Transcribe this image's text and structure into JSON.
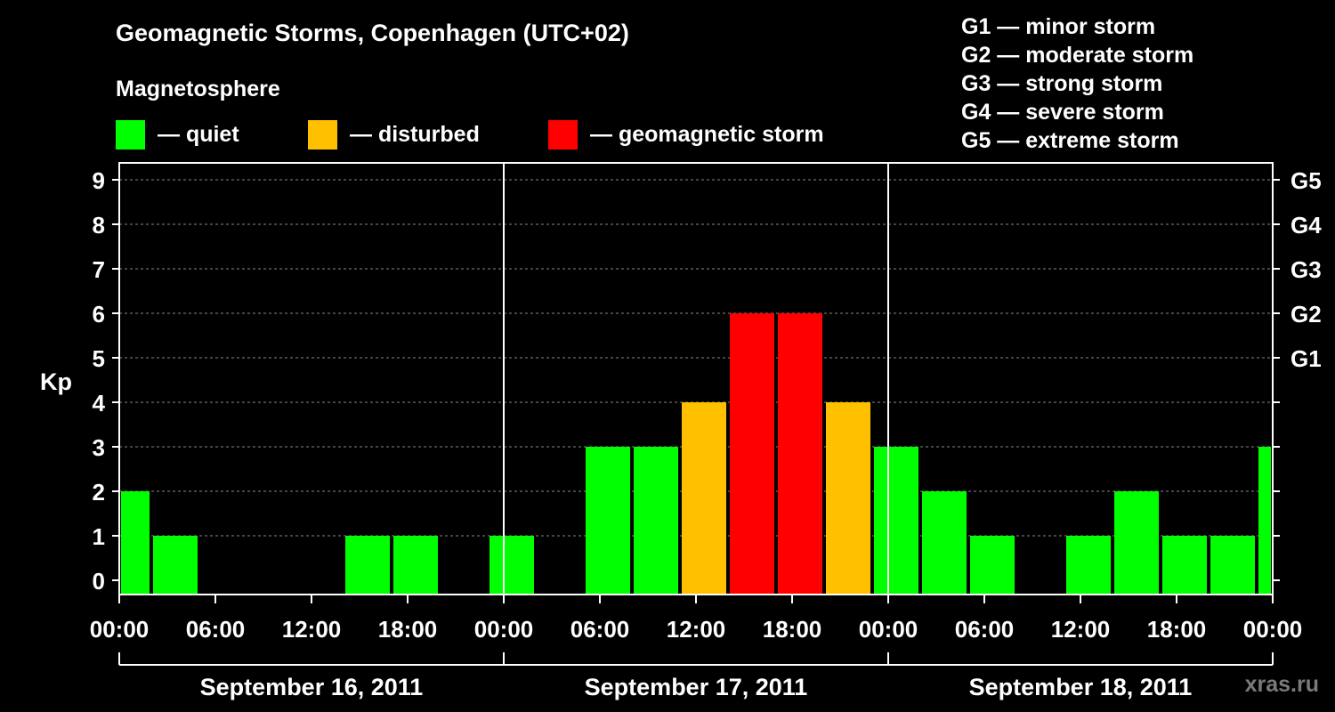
{
  "chart_data": {
    "type": "bar",
    "title": "Geomagnetic Storms, Copenhagen (UTC+02)",
    "subtitle": "Magnetosphere",
    "ylabel": "Kp",
    "ylim": [
      0,
      9
    ],
    "yticks": [
      0,
      1,
      2,
      3,
      4,
      5,
      6,
      7,
      8,
      9
    ],
    "right_axis_labels": [
      {
        "kp": 5,
        "label": "G1"
      },
      {
        "kp": 6,
        "label": "G2"
      },
      {
        "kp": 7,
        "label": "G3"
      },
      {
        "kp": 8,
        "label": "G4"
      },
      {
        "kp": 9,
        "label": "G5"
      }
    ],
    "xlim_hours": [
      0,
      72
    ],
    "x_tick_labels": [
      "00:00",
      "06:00",
      "12:00",
      "18:00",
      "00:00",
      "06:00",
      "12:00",
      "18:00",
      "00:00",
      "06:00",
      "12:00",
      "18:00",
      "00:00"
    ],
    "days": [
      "September 16, 2011",
      "September 17, 2011",
      "September 18, 2011"
    ],
    "bars": [
      {
        "start": 0,
        "end": 2,
        "kp": 2,
        "level": "quiet"
      },
      {
        "start": 2,
        "end": 5,
        "kp": 1,
        "level": "quiet"
      },
      {
        "start": 5,
        "end": 8,
        "kp": 0,
        "level": "quiet"
      },
      {
        "start": 8,
        "end": 11,
        "kp": 0,
        "level": "quiet"
      },
      {
        "start": 11,
        "end": 14,
        "kp": 0,
        "level": "quiet"
      },
      {
        "start": 14,
        "end": 17,
        "kp": 1,
        "level": "quiet"
      },
      {
        "start": 17,
        "end": 20,
        "kp": 1,
        "level": "quiet"
      },
      {
        "start": 20,
        "end": 23,
        "kp": 0,
        "level": "quiet"
      },
      {
        "start": 23,
        "end": 26,
        "kp": 1,
        "level": "quiet"
      },
      {
        "start": 26,
        "end": 29,
        "kp": 0,
        "level": "quiet"
      },
      {
        "start": 29,
        "end": 32,
        "kp": 3,
        "level": "quiet"
      },
      {
        "start": 32,
        "end": 35,
        "kp": 3,
        "level": "quiet"
      },
      {
        "start": 35,
        "end": 38,
        "kp": 4,
        "level": "disturbed"
      },
      {
        "start": 38,
        "end": 41,
        "kp": 6,
        "level": "storm"
      },
      {
        "start": 41,
        "end": 44,
        "kp": 6,
        "level": "storm"
      },
      {
        "start": 44,
        "end": 47,
        "kp": 4,
        "level": "disturbed"
      },
      {
        "start": 47,
        "end": 50,
        "kp": 3,
        "level": "quiet"
      },
      {
        "start": 50,
        "end": 53,
        "kp": 2,
        "level": "quiet"
      },
      {
        "start": 53,
        "end": 56,
        "kp": 1,
        "level": "quiet"
      },
      {
        "start": 56,
        "end": 59,
        "kp": 0,
        "level": "quiet"
      },
      {
        "start": 59,
        "end": 62,
        "kp": 1,
        "level": "quiet"
      },
      {
        "start": 62,
        "end": 65,
        "kp": 2,
        "level": "quiet"
      },
      {
        "start": 65,
        "end": 68,
        "kp": 1,
        "level": "quiet"
      },
      {
        "start": 68,
        "end": 71,
        "kp": 1,
        "level": "quiet"
      },
      {
        "start": 71,
        "end": 72,
        "kp": 3,
        "level": "quiet"
      }
    ],
    "colors": {
      "quiet": "#00ff00",
      "disturbed": "#ffc000",
      "storm": "#ff0000"
    }
  },
  "legend": [
    {
      "key": "quiet",
      "label": "— quiet",
      "color": "#00ff00"
    },
    {
      "key": "disturbed",
      "label": "— disturbed",
      "color": "#ffc000"
    },
    {
      "key": "storm",
      "label": "— geomagnetic storm",
      "color": "#ff0000"
    }
  ],
  "g_legend": [
    "G1 — minor storm",
    "G2 — moderate storm",
    "G3 — strong storm",
    "G4 — severe storm",
    "G5 — extreme storm"
  ],
  "watermark": "xras.ru"
}
